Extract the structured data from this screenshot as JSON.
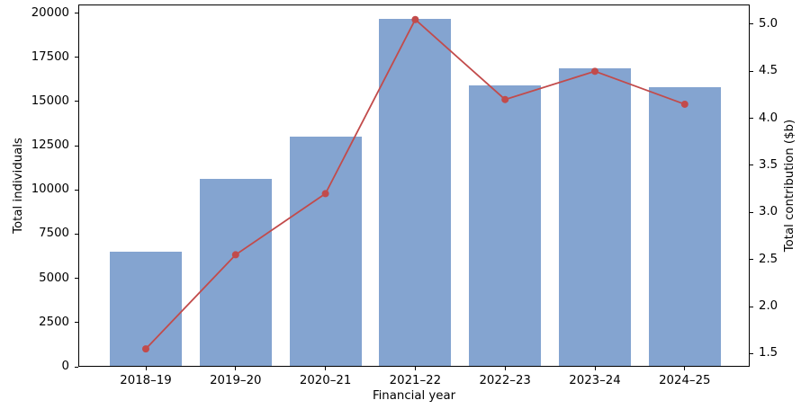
{
  "page": {
    "background": "#ffffff"
  },
  "chart_data": {
    "type": "bar",
    "title": "",
    "categories": [
      "2018–19",
      "2019–20",
      "2020–21",
      "2021–22",
      "2022–23",
      "2023–24",
      "2024–25"
    ],
    "series": [
      {
        "name": "Total individuals",
        "chart_type": "bar",
        "axis": "left",
        "color": "#84A4D0",
        "values": [
          6500,
          10650,
          13000,
          19700,
          15900,
          16900,
          15800
        ]
      },
      {
        "name": "Total contribution ($b)",
        "chart_type": "line",
        "axis": "right",
        "color": "#C24B4B",
        "marker": "circle",
        "values": [
          1.55,
          2.55,
          3.2,
          5.05,
          4.2,
          4.5,
          4.15
        ]
      }
    ],
    "xlabel": "Financial year",
    "ylabel_left": "Total individuals",
    "ylabel_right": "Total contribution ($b)",
    "left_axis": {
      "range": [
        0,
        20490
      ],
      "ticks": [
        0,
        2500,
        5000,
        7500,
        10000,
        12500,
        15000,
        17500,
        20000
      ]
    },
    "right_axis": {
      "range": [
        1.36,
        5.21
      ],
      "ticks": [
        1.5,
        2.0,
        2.5,
        3.0,
        3.5,
        4.0,
        4.5,
        5.0
      ],
      "decimals": 1
    },
    "grid": false,
    "legend": "none"
  }
}
